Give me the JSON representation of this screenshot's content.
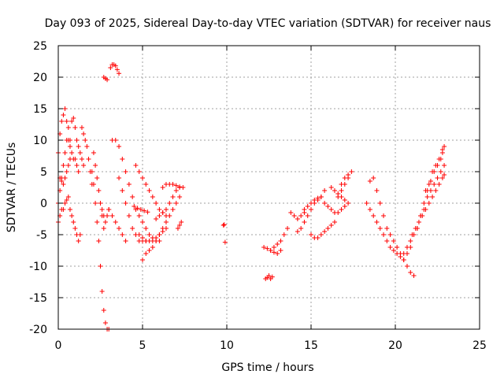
{
  "chart_data": {
    "type": "scatter",
    "title": "Day 093 of 2025, Sidereal Day-to-day VTEC variation (SDTVAR) for receiver naus",
    "xlabel": "GPS time / hours",
    "ylabel": "SDTVAR / TECUs",
    "xlim": [
      0,
      25
    ],
    "ylim": [
      -20,
      25
    ],
    "xticks": [
      0,
      5,
      10,
      15,
      20,
      25
    ],
    "yticks": [
      -20,
      -15,
      -10,
      -5,
      0,
      5,
      10,
      15,
      20,
      25
    ],
    "xtick_labels": [
      "0",
      "5",
      "10",
      "15",
      "20",
      "25"
    ],
    "ytick_labels": [
      "-20",
      "-15",
      "-10",
      "-5",
      "0",
      "5",
      "10",
      "15",
      "20",
      "25"
    ],
    "grid": true,
    "marker": "+",
    "color": "#ff0000",
    "series": [
      {
        "name": "s1",
        "x": [
          0.0,
          0.1,
          0.2,
          0.3,
          0.4,
          0.5,
          0.6,
          0.7
        ],
        "y": [
          8,
          11,
          13,
          14,
          15,
          13,
          12,
          10
        ]
      },
      {
        "name": "s2",
        "x": [
          0.0,
          0.1,
          0.2,
          0.3,
          0.4,
          0.5,
          0.6,
          0.7,
          0.8,
          0.9,
          1.0,
          1.1,
          1.2
        ],
        "y": [
          0,
          2,
          4,
          6,
          8,
          10,
          10,
          9,
          8,
          7,
          7,
          6,
          5
        ]
      },
      {
        "name": "s3",
        "x": [
          0.1,
          0.2,
          0.3,
          0.4,
          0.5,
          0.6,
          0.7
        ],
        "y": [
          4,
          3.5,
          3,
          4,
          5,
          6,
          7
        ]
      },
      {
        "name": "s4",
        "x": [
          0.0,
          0.1,
          0.2,
          0.3,
          0.4,
          0.5,
          0.6
        ],
        "y": [
          -3,
          -2,
          -1,
          -1,
          0,
          0.5,
          1
        ]
      },
      {
        "name": "s5",
        "x": [
          0.8,
          0.9,
          1.0,
          1.1,
          1.2,
          1.3,
          1.4,
          1.5
        ],
        "y": [
          13,
          13.5,
          12,
          10,
          9,
          8,
          7,
          6
        ]
      },
      {
        "name": "s6",
        "x": [
          0.7,
          0.8,
          0.9,
          1.0,
          1.1,
          1.2,
          1.3
        ],
        "y": [
          -1,
          -2,
          -3,
          -4,
          -5,
          -6,
          -5
        ]
      },
      {
        "name": "s7",
        "x": [
          1.4,
          1.5,
          1.6,
          1.7,
          1.8,
          1.9,
          2.0
        ],
        "y": [
          12,
          11,
          10,
          9,
          7,
          5,
          3
        ]
      },
      {
        "name": "s8",
        "x": [
          2.0,
          2.1,
          2.2,
          2.3,
          2.4,
          2.5,
          2.6,
          2.7,
          2.8,
          2.9,
          3.0
        ],
        "y": [
          5,
          3,
          0,
          -3,
          -6,
          -10,
          -14,
          -17,
          -19,
          -20,
          -20
        ]
      },
      {
        "name": "s9",
        "x": [
          2.1,
          2.2,
          2.3,
          2.4,
          2.5,
          2.6,
          2.7
        ],
        "y": [
          8,
          6,
          4,
          2,
          0,
          -2,
          -4
        ]
      },
      {
        "name": "s10",
        "x": [
          2.6,
          2.7,
          2.8,
          2.9,
          3.0
        ],
        "y": [
          -1,
          -2,
          -3,
          -2,
          -1
        ]
      },
      {
        "name": "s11",
        "x": [
          2.7,
          2.8,
          2.9
        ],
        "y": [
          20,
          19.8,
          19.6
        ]
      },
      {
        "name": "s12",
        "x": [
          3.1,
          3.2,
          3.3,
          3.4,
          3.5,
          3.6
        ],
        "y": [
          21.5,
          22,
          22,
          21.8,
          21.2,
          20.6
        ]
      },
      {
        "name": "s13",
        "x": [
          3.2,
          3.4,
          3.6,
          3.8,
          4.0,
          4.2,
          4.4,
          4.6,
          4.8,
          5.0,
          5.2,
          5.4,
          5.6,
          5.8,
          6.0
        ],
        "y": [
          10,
          10,
          9,
          7,
          5,
          3,
          1,
          -1,
          -2,
          -3,
          -4,
          -5,
          -5.5,
          -6,
          -6
        ]
      },
      {
        "name": "s14",
        "x": [
          3.6,
          3.8,
          4.0,
          4.2,
          4.4,
          4.6,
          4.8,
          5.0,
          5.2
        ],
        "y": [
          4,
          2,
          0,
          -2,
          -4,
          -5,
          -6,
          -6,
          -6
        ]
      },
      {
        "name": "s15",
        "x": [
          3.0,
          3.2,
          3.4,
          3.6,
          3.8,
          4.0
        ],
        "y": [
          -1,
          -2,
          -3,
          -4,
          -5,
          -6
        ]
      },
      {
        "name": "s16",
        "x": [
          4.6,
          4.8,
          5.0,
          5.2,
          5.4,
          5.6,
          5.8,
          6.0,
          6.2,
          6.4
        ],
        "y": [
          6,
          5,
          4,
          3,
          2,
          1,
          0,
          -1,
          -1.5,
          -2
        ]
      },
      {
        "name": "s17",
        "x": [
          5.0,
          5.2,
          5.4,
          5.6,
          5.8,
          6.0,
          6.2,
          6.4,
          6.6,
          6.8,
          7.0,
          7.2
        ],
        "y": [
          -9,
          -8,
          -7.5,
          -7,
          -6,
          -5,
          -4,
          -3,
          -2,
          -1,
          0,
          1
        ]
      },
      {
        "name": "s18",
        "x": [
          4.8,
          5.0,
          5.2,
          5.4,
          5.6,
          5.8,
          6.0,
          6.2,
          6.4
        ],
        "y": [
          -5,
          -5.5,
          -6,
          -6,
          -6,
          -5.5,
          -5,
          -4.5,
          -4
        ]
      },
      {
        "name": "s19",
        "x": [
          4.5,
          4.7,
          4.9,
          5.1,
          5.3
        ],
        "y": [
          -0.5,
          -0.8,
          -1,
          -1.2,
          -1.4
        ]
      },
      {
        "name": "s20",
        "x": [
          6.2,
          6.4,
          6.6,
          6.8,
          7.0,
          7.2,
          7.4
        ],
        "y": [
          2.5,
          3,
          3,
          3,
          2.8,
          2.6,
          2.5
        ]
      },
      {
        "name": "s21",
        "x": [
          5.8,
          6.0,
          6.2,
          6.4,
          6.6,
          6.8,
          7.0,
          7.2
        ],
        "y": [
          -2.5,
          -2,
          -1.5,
          -1,
          0,
          1,
          2,
          2.5
        ]
      },
      {
        "name": "s22",
        "x": [
          7.1,
          7.2,
          7.3
        ],
        "y": [
          -4,
          -3.5,
          -3
        ]
      },
      {
        "name": "s23",
        "x": [
          9.8,
          9.85,
          9.9
        ],
        "y": [
          -3.5,
          -3.4,
          -6.2
        ]
      },
      {
        "name": "s24",
        "x": [
          12.3,
          12.4,
          12.5,
          12.6,
          12.7
        ],
        "y": [
          -12,
          -11.8,
          -11.5,
          -12,
          -11.7
        ]
      },
      {
        "name": "s25",
        "x": [
          12.2,
          12.4,
          12.6,
          12.8,
          13.0,
          13.2,
          13.4,
          13.6
        ],
        "y": [
          -7,
          -7.2,
          -7.5,
          -7,
          -6.5,
          -6,
          -5,
          -4
        ]
      },
      {
        "name": "s26",
        "x": [
          12.6,
          12.8,
          13.0,
          13.2
        ],
        "y": [
          -7.5,
          -7.8,
          -8,
          -7.5
        ]
      },
      {
        "name": "s27",
        "x": [
          13.8,
          14.0,
          14.2,
          14.4,
          14.6
        ],
        "y": [
          -1.5,
          -2,
          -2.5,
          -2,
          -1.5
        ]
      },
      {
        "name": "s28",
        "x": [
          14.2,
          14.4,
          14.6,
          14.8,
          15.0,
          15.2,
          15.4,
          15.6,
          15.8
        ],
        "y": [
          -4.5,
          -4,
          -3,
          -2,
          -1,
          0,
          0.5,
          1,
          2
        ]
      },
      {
        "name": "s29",
        "x": [
          14.6,
          14.8,
          15.0,
          15.2,
          15.4,
          15.6
        ],
        "y": [
          -1,
          -0.5,
          0,
          0.5,
          0.8,
          1
        ]
      },
      {
        "name": "s30",
        "x": [
          15.0,
          15.2,
          15.4,
          15.6,
          15.8,
          16.0,
          16.2,
          16.4
        ],
        "y": [
          -5,
          -5.5,
          -5.5,
          -5,
          -4.5,
          -4,
          -3.5,
          -3
        ]
      },
      {
        "name": "s31",
        "x": [
          15.8,
          16.0,
          16.2,
          16.4,
          16.6,
          16.8,
          17.0
        ],
        "y": [
          0,
          -0.5,
          -1,
          -1.5,
          -1.5,
          -1,
          -0.5
        ]
      },
      {
        "name": "s32",
        "x": [
          16.2,
          16.4,
          16.6,
          16.8,
          17.0,
          17.2
        ],
        "y": [
          2.5,
          2,
          1.5,
          1,
          0.5,
          0
        ]
      },
      {
        "name": "s33",
        "x": [
          16.6,
          16.8,
          17.0,
          17.2
        ],
        "y": [
          1,
          2,
          3,
          4
        ]
      },
      {
        "name": "s34",
        "x": [
          16.8,
          17.0,
          17.2,
          17.4
        ],
        "y": [
          3,
          4,
          4.5,
          5
        ]
      },
      {
        "name": "s35",
        "x": [
          18.5,
          18.7,
          18.9,
          19.1,
          19.3,
          19.5,
          19.7,
          19.9,
          20.1,
          20.3,
          20.5,
          20.7,
          20.9,
          21.1
        ],
        "y": [
          3.5,
          4,
          2,
          0,
          -2,
          -4,
          -5,
          -6,
          -7,
          -8,
          -9,
          -10,
          -11,
          -11.5
        ]
      },
      {
        "name": "s36",
        "x": [
          18.3,
          18.5,
          18.7,
          18.9,
          19.1,
          19.3,
          19.5,
          19.7,
          19.9,
          20.1
        ],
        "y": [
          0,
          -1,
          -2,
          -3,
          -4,
          -5,
          -6,
          -7,
          -7.5,
          -8
        ]
      },
      {
        "name": "s37",
        "x": [
          20.3,
          20.5,
          20.7,
          20.9,
          21.1,
          21.3,
          21.5,
          21.7,
          21.9,
          22.1,
          22.3,
          22.5,
          22.7,
          22.8
        ],
        "y": [
          -8.5,
          -8,
          -7,
          -6,
          -5,
          -4,
          -2,
          0,
          2,
          3.5,
          5,
          6,
          7,
          8
        ]
      },
      {
        "name": "s38",
        "x": [
          20.5,
          20.7,
          20.9,
          21.1,
          21.3,
          21.5,
          21.7,
          21.9,
          22.1,
          22.3,
          22.5,
          22.7,
          22.9
        ],
        "y": [
          -9,
          -8,
          -7,
          -5,
          -4,
          -2,
          -1,
          1,
          2,
          3,
          4,
          5,
          6
        ]
      },
      {
        "name": "s39",
        "x": [
          21.0,
          21.2,
          21.4,
          21.6,
          21.8,
          22.0,
          22.2,
          22.4,
          22.6,
          22.8,
          22.9
        ],
        "y": [
          -5,
          -4,
          -3,
          -2,
          -1,
          0,
          1,
          2,
          3,
          4,
          4.5
        ]
      },
      {
        "name": "s40",
        "x": [
          21.8,
          22.0,
          22.2,
          22.4,
          22.6,
          22.8,
          22.9
        ],
        "y": [
          2,
          3,
          5,
          6,
          7,
          8.5,
          9
        ]
      }
    ]
  }
}
